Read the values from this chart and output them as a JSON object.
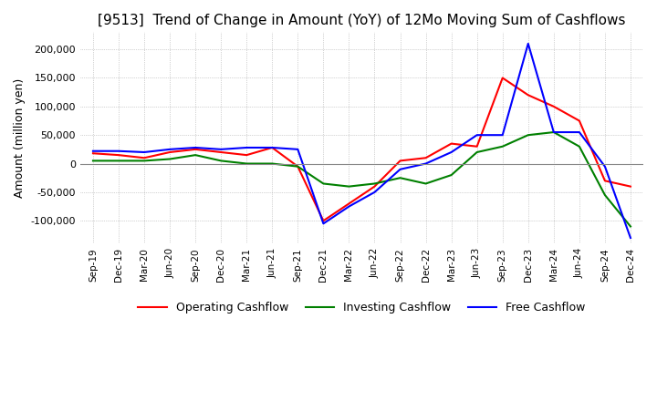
{
  "title": "[9513]  Trend of Change in Amount (YoY) of 12Mo Moving Sum of Cashflows",
  "ylabel": "Amount (million yen)",
  "ylim": [
    -140000,
    230000
  ],
  "yticks": [
    -100000,
    -50000,
    0,
    50000,
    100000,
    150000,
    200000
  ],
  "x_labels": [
    "Sep-19",
    "Dec-19",
    "Mar-20",
    "Jun-20",
    "Sep-20",
    "Dec-20",
    "Mar-21",
    "Jun-21",
    "Sep-21",
    "Dec-21",
    "Mar-22",
    "Jun-22",
    "Sep-22",
    "Dec-22",
    "Mar-23",
    "Jun-23",
    "Sep-23",
    "Dec-23",
    "Mar-24",
    "Jun-24",
    "Sep-24",
    "Dec-24"
  ],
  "operating": [
    18000,
    15000,
    10000,
    20000,
    25000,
    20000,
    15000,
    28000,
    -5000,
    -100000,
    -70000,
    -40000,
    5000,
    10000,
    35000,
    30000,
    150000,
    120000,
    100000,
    75000,
    -30000,
    -40000
  ],
  "investing": [
    5000,
    5000,
    5000,
    8000,
    15000,
    5000,
    0,
    0,
    -5000,
    -35000,
    -40000,
    -35000,
    -25000,
    -35000,
    -20000,
    20000,
    30000,
    50000,
    55000,
    30000,
    -55000,
    -110000
  ],
  "free": [
    22000,
    22000,
    20000,
    25000,
    28000,
    25000,
    28000,
    28000,
    25000,
    -105000,
    -75000,
    -50000,
    -10000,
    0,
    20000,
    50000,
    50000,
    210000,
    55000,
    55000,
    -5000,
    -130000
  ],
  "op_color": "#ff0000",
  "inv_color": "#008000",
  "free_color": "#0000ff",
  "bg_color": "#ffffff",
  "grid_color": "#aaaaaa",
  "title_fontsize": 11,
  "legend_labels": [
    "Operating Cashflow",
    "Investing Cashflow",
    "Free Cashflow"
  ]
}
